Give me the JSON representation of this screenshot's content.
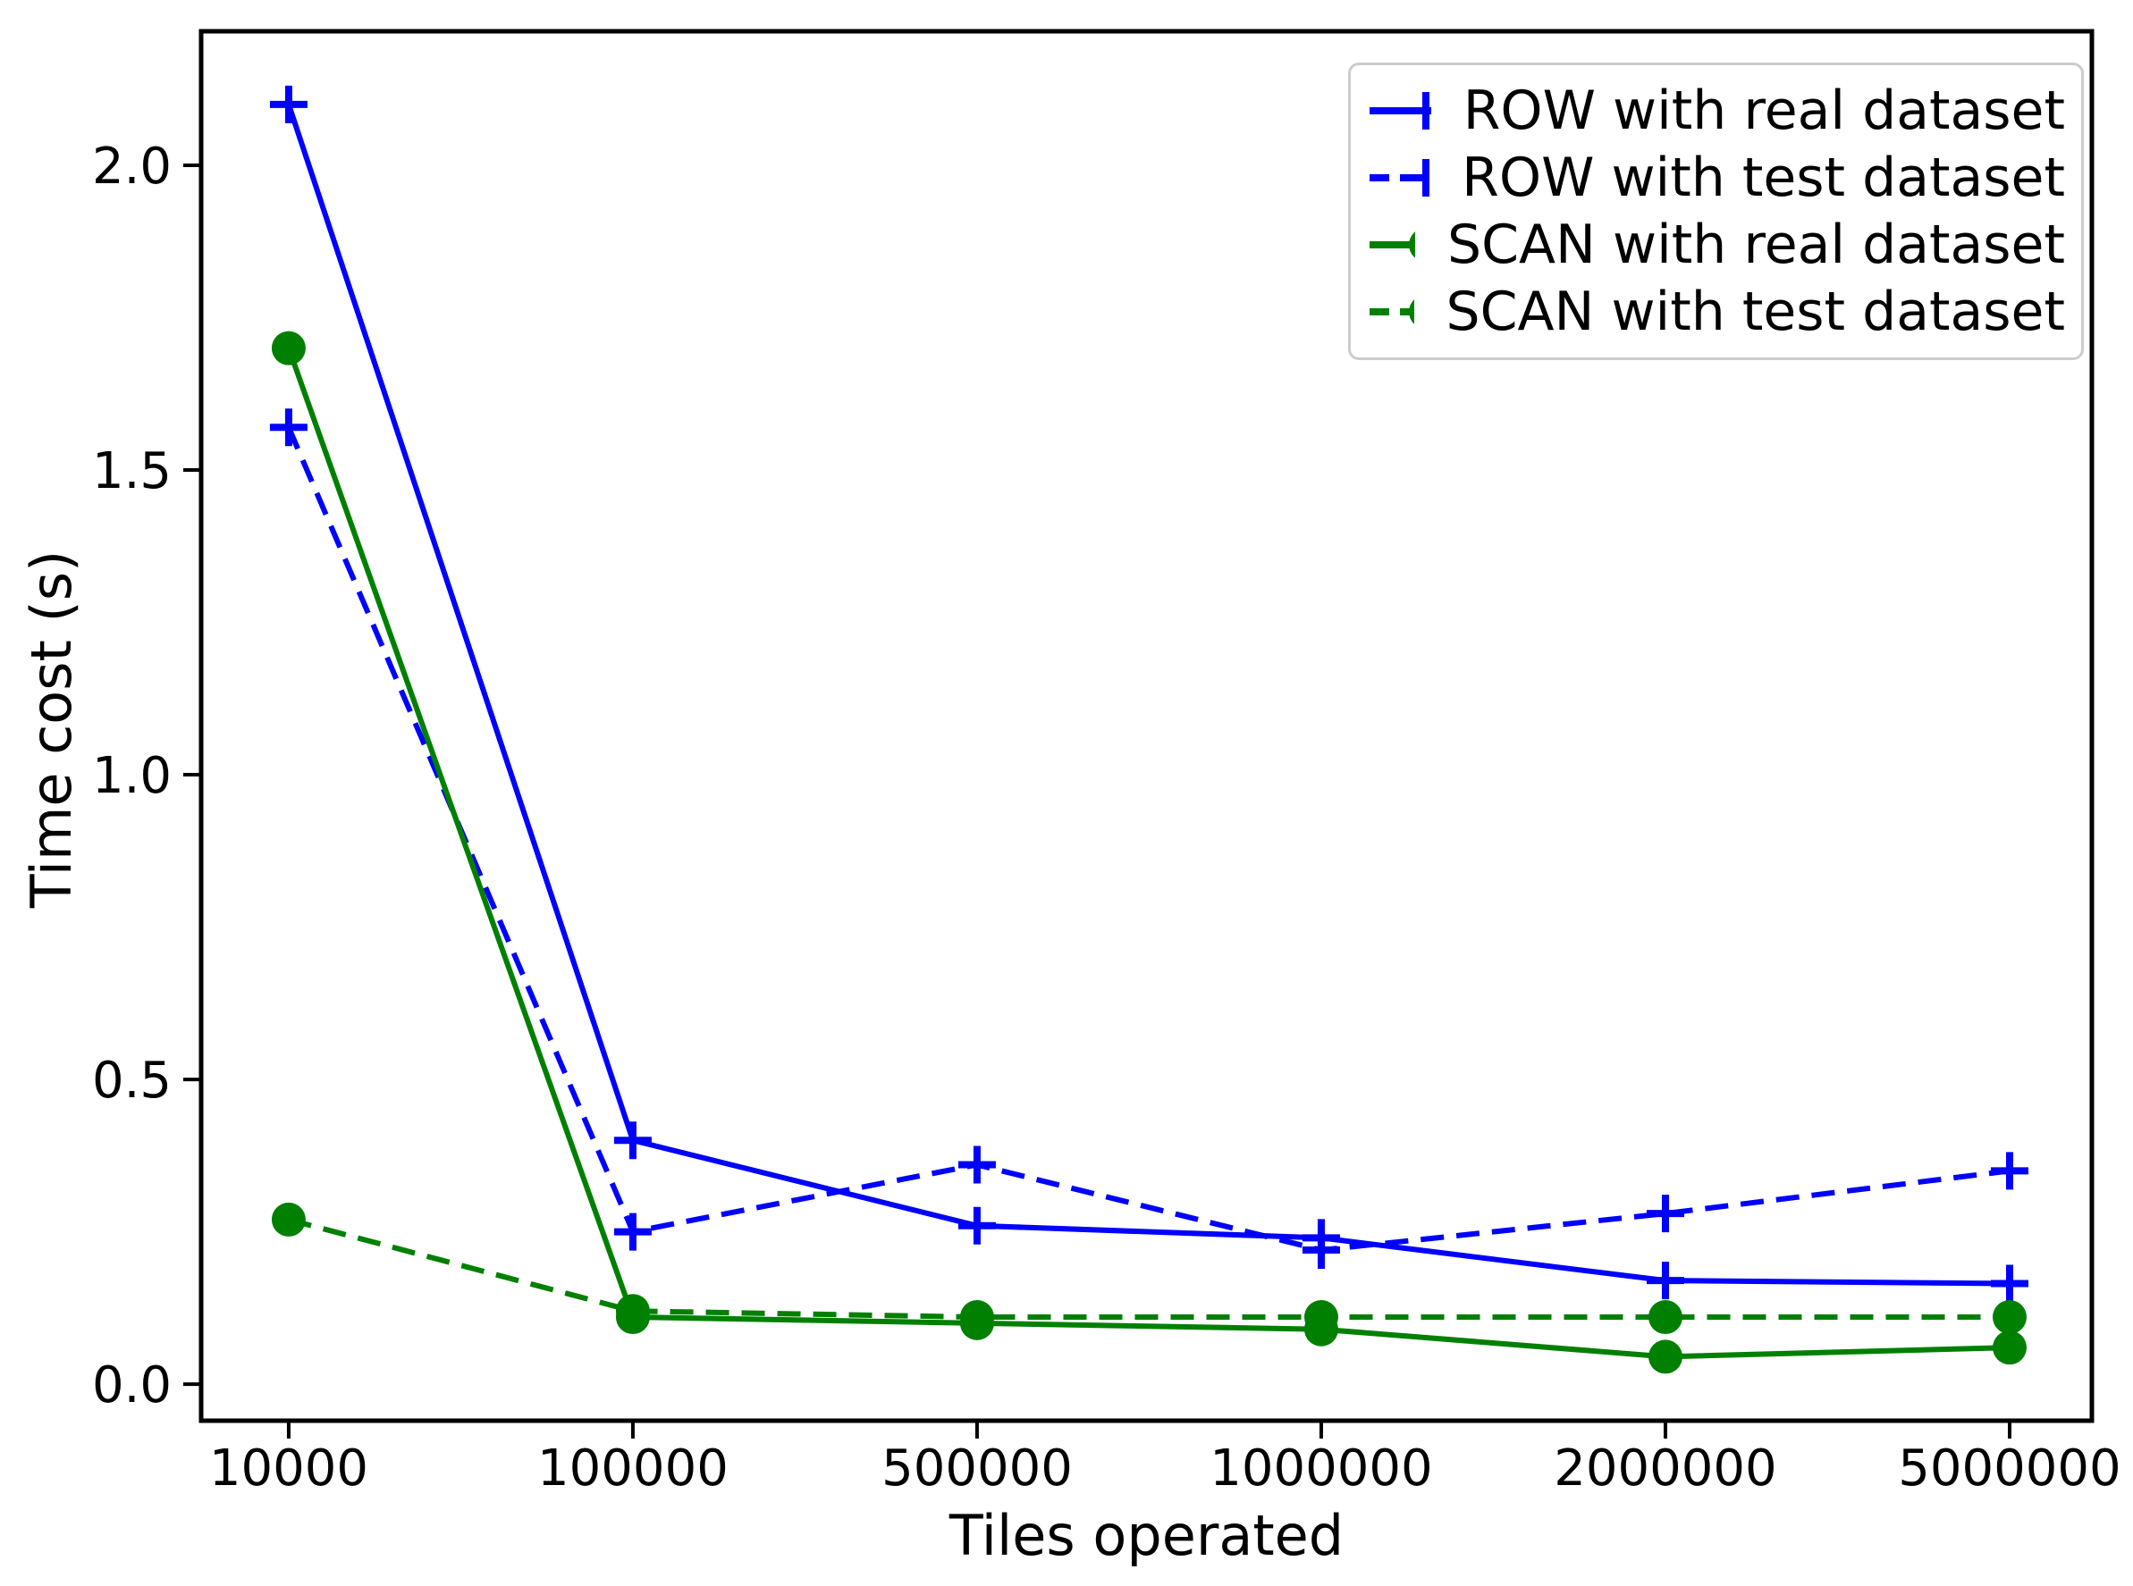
{
  "figure": {
    "background": "#ffffff"
  },
  "chart_data": {
    "type": "line",
    "title": "",
    "xlabel": "Tiles operated",
    "ylabel": "Time cost (s)",
    "grid": false,
    "legend_position": "upper right",
    "x_scale": "categorical-even",
    "categories": [
      10000,
      100000,
      500000,
      1000000,
      2000000,
      5000000
    ],
    "x_tick_labels": [
      "10000",
      "100000",
      "500000",
      "1000000",
      "2000000",
      "5000000"
    ],
    "y_ticks": [
      0.0,
      0.5,
      1.0,
      1.5,
      2.0
    ],
    "y_tick_labels": [
      "0.0",
      "0.5",
      "1.0",
      "1.5",
      "2.0"
    ],
    "ylim": [
      -0.06,
      2.22
    ],
    "series": [
      {
        "name": "ROW with real dataset",
        "color": "#0000ff",
        "linestyle": "solid",
        "marker": "plus",
        "values": [
          2.1,
          0.4,
          0.26,
          0.24,
          0.17,
          0.165
        ]
      },
      {
        "name": "ROW with test dataset",
        "color": "#0000ff",
        "linestyle": "dashed",
        "marker": "plus",
        "values": [
          1.57,
          0.25,
          0.36,
          0.22,
          0.28,
          0.35
        ]
      },
      {
        "name": "SCAN with real dataset",
        "color": "#008000",
        "linestyle": "solid",
        "marker": "circle",
        "values": [
          1.7,
          0.11,
          0.1,
          0.09,
          0.045,
          0.06
        ]
      },
      {
        "name": "SCAN with test dataset",
        "color": "#008000",
        "linestyle": "dashed",
        "marker": "circle",
        "values": [
          0.27,
          0.12,
          0.11,
          0.11,
          0.11,
          0.11
        ]
      }
    ]
  }
}
